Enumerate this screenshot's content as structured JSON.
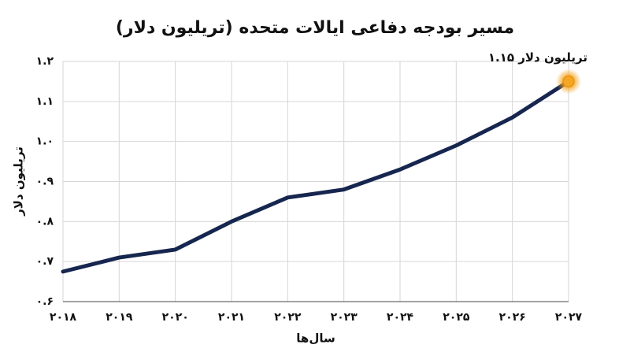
{
  "chart_data": {
    "type": "line",
    "title": "مسیر بودجه دفاعی ایالات متحده (تریلیون دلار)",
    "x_label": "سال‌ها",
    "y_label": "تریلیون دلار",
    "annotation": "۱.۱۵ تریلیون دلار",
    "categories": [
      "۲۰۱۸",
      "۲۰۱۹",
      "۲۰۲۰",
      "۲۰۲۱",
      "۲۰۲۲",
      "۲۰۲۳",
      "۲۰۲۴",
      "۲۰۲۵",
      "۲۰۲۶",
      "۲۰۲۷"
    ],
    "values": [
      0.675,
      0.71,
      0.73,
      0.8,
      0.86,
      0.88,
      0.93,
      0.99,
      1.06,
      1.15
    ],
    "color": "#16264f",
    "highlight_color": "#f5a623",
    "ylim": [
      0.6,
      1.2
    ],
    "yticks": [
      {
        "value": 0.6,
        "label": "۰.۶"
      },
      {
        "value": 0.7,
        "label": "۰.۷"
      },
      {
        "value": 0.8,
        "label": "۰.۸"
      },
      {
        "value": 0.9,
        "label": "۰.۹"
      },
      {
        "value": 1.0,
        "label": "۱.۰"
      },
      {
        "value": 1.1,
        "label": "۱.۱"
      },
      {
        "value": 1.2,
        "label": "۱.۲"
      }
    ],
    "grid": true
  }
}
